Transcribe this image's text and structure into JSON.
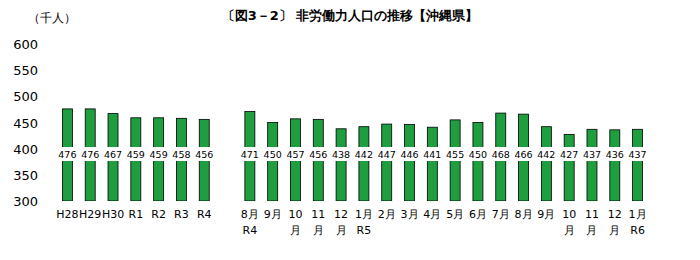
{
  "chart_data": {
    "type": "bar",
    "title": "〔図3－2〕 非労働力人口の推移【沖縄県】",
    "y_label": "（千人）",
    "categories": [
      "H28",
      "H29",
      "H30",
      "R1",
      "R2",
      "R3",
      "R4",
      null,
      "8月\nR4",
      "9月",
      "10\n月",
      "11\n月",
      "12\n月",
      "1月\nR5",
      "2月",
      "3月",
      "4月",
      "5月",
      "6月",
      "7月",
      "8月",
      "9月",
      "10\n月",
      "11\n月",
      "12\n月",
      "1月\nR6"
    ],
    "values": [
      476,
      476,
      467,
      459,
      459,
      458,
      456,
      null,
      471,
      450,
      457,
      456,
      438,
      442,
      447,
      446,
      441,
      455,
      450,
      468,
      466,
      442,
      427,
      437,
      436,
      437
    ],
    "color": "#1e9e3e",
    "ylim": [
      300,
      600
    ],
    "yticks": [
      300,
      350,
      400,
      450,
      500,
      550,
      600
    ],
    "grid": false,
    "data_labels": true
  }
}
